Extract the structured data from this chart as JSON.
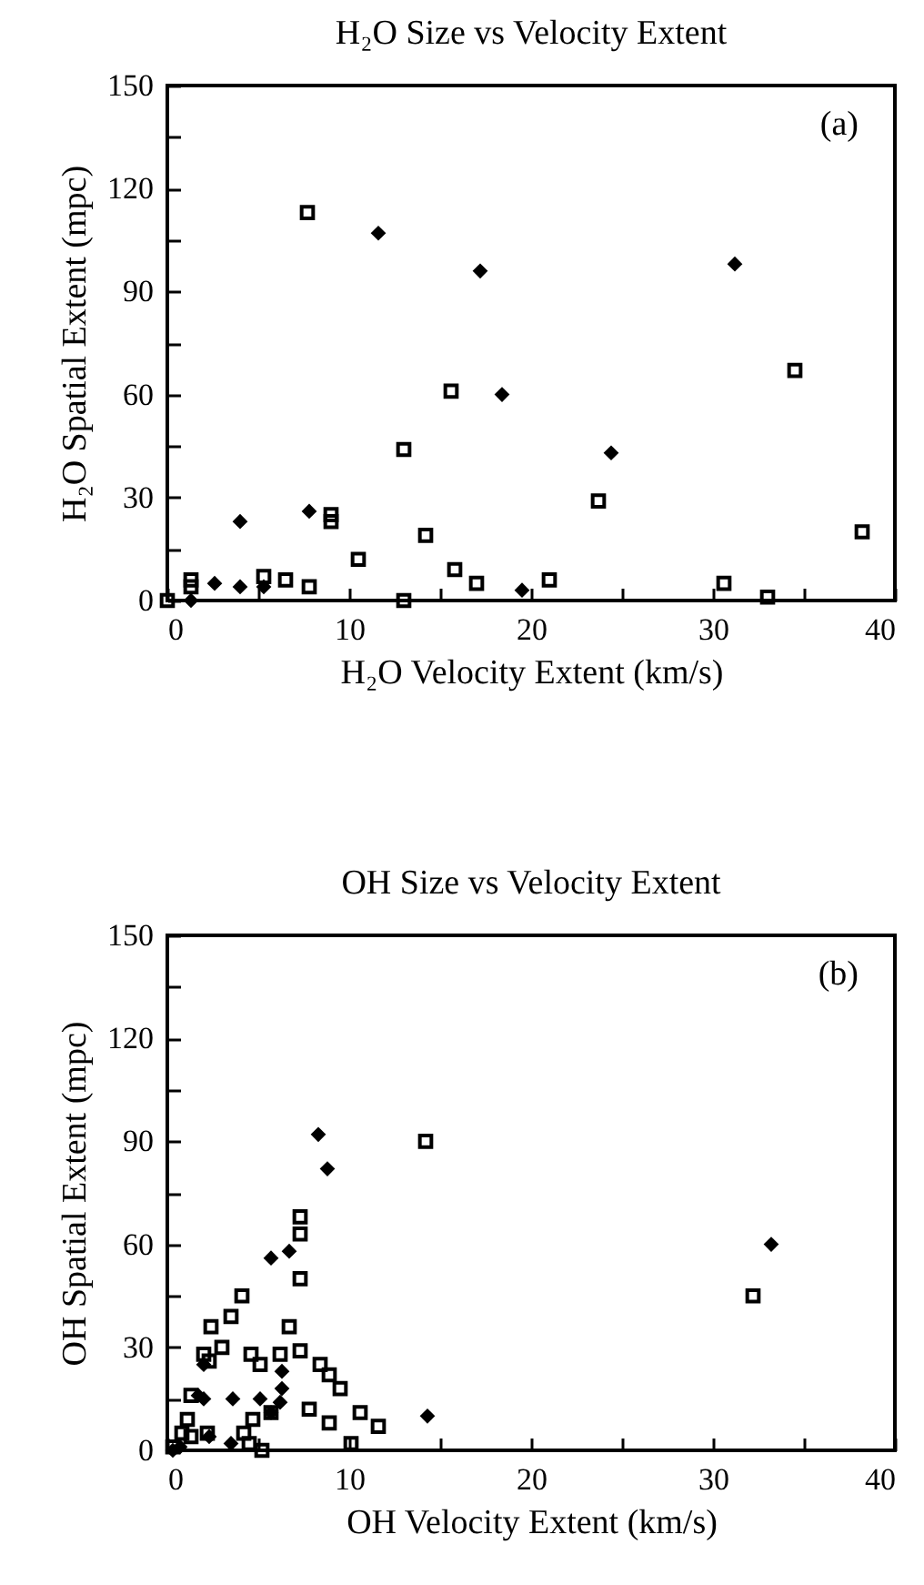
{
  "chart_data": [
    {
      "type": "scatter",
      "title": "H₂O   Size vs Velocity Extent",
      "xlabel": "H₂O  Velocity Extent (km/s)",
      "ylabel": "H₂O  Spatial Extent (mpc)",
      "annotations": [
        "(a)"
      ],
      "xlim": [
        0,
        40
      ],
      "ylim": [
        0,
        150
      ],
      "xticks": [
        0,
        {
          "value": 5,
          "label": null
        },
        10,
        {
          "value": 15,
          "label": null
        },
        20,
        {
          "value": 25,
          "label": null
        },
        30,
        {
          "value": 35,
          "label": null
        },
        40
      ],
      "yticks": [
        0,
        {
          "value": 15,
          "label": null
        },
        30,
        {
          "value": 45,
          "label": null
        },
        60,
        {
          "value": 75,
          "label": null
        },
        90,
        {
          "value": 105,
          "label": null
        },
        120,
        {
          "value": 135,
          "label": null
        },
        150
      ],
      "series": [
        {
          "color": "#000000",
          "marker": "diamond",
          "x": [
            11.6,
            17.2,
            31.2,
            18.4,
            24.4,
            4.0,
            7.8,
            19.5,
            2.6,
            4.0,
            5.3,
            1.3
          ],
          "values": [
            107,
            96,
            98,
            60,
            43,
            23,
            26,
            3,
            5,
            4,
            4,
            0
          ]
        },
        {
          "color": "#000000",
          "marker": "square",
          "x": [
            7.7,
            15.6,
            13.0,
            34.5,
            23.7,
            9.0,
            9.0,
            14.2,
            10.5,
            15.8,
            17.0,
            21.0,
            38.2,
            30.6,
            33.0,
            13.0,
            1.3,
            1.3,
            5.3,
            6.5,
            7.8,
            0
          ],
          "values": [
            113,
            61,
            44,
            67,
            29,
            25,
            23,
            19,
            12,
            9,
            5,
            6,
            20,
            5,
            1,
            0,
            6,
            4,
            7,
            6,
            4,
            0
          ]
        }
      ]
    },
    {
      "type": "scatter",
      "title": "OH Size vs Velocity Extent",
      "xlabel": "OH Velocity Extent (km/s)",
      "ylabel": "OH Spatial Extent (mpc)",
      "annotations": [
        "(b)"
      ],
      "xlim": [
        0,
        40
      ],
      "ylim": [
        0,
        150
      ],
      "xticks": [
        0,
        {
          "value": 5,
          "label": null
        },
        10,
        {
          "value": 15,
          "label": null
        },
        20,
        {
          "value": 25,
          "label": null
        },
        30,
        {
          "value": 35,
          "label": null
        },
        40
      ],
      "yticks": [
        0,
        {
          "value": 15,
          "label": null
        },
        30,
        {
          "value": 45,
          "label": null
        },
        60,
        {
          "value": 75,
          "label": null
        },
        90,
        {
          "value": 105,
          "label": null
        },
        120,
        {
          "value": 135,
          "label": null
        },
        150
      ],
      "series": [
        {
          "color": "#000000",
          "marker": "diamond",
          "x": [
            8.3,
            8.8,
            5.7,
            6.7,
            14.3,
            33.2,
            3.6,
            5.1,
            6.3,
            6.3,
            6.2,
            5.7,
            2.0,
            2.0,
            1.7,
            2.3,
            0.3,
            3.5,
            0.7
          ],
          "values": [
            92,
            82,
            56,
            58,
            10,
            60,
            15,
            15,
            23,
            18,
            14,
            11,
            25,
            15,
            16,
            4,
            0,
            2,
            1
          ]
        },
        {
          "color": "#000000",
          "marker": "square",
          "x": [
            14.2,
            7.3,
            7.3,
            7.3,
            4.1,
            3.5,
            2.4,
            6.7,
            3.0,
            2.0,
            2.3,
            4.6,
            5.1,
            6.2,
            7.3,
            8.4,
            8.9,
            9.5,
            7.8,
            8.9,
            10.6,
            11.6,
            10.1,
            5.7,
            4.7,
            4.2,
            4.5,
            5.2,
            1.3,
            1.1,
            0.8,
            1.3,
            2.2,
            0.3,
            32.2
          ],
          "values": [
            90,
            68,
            63,
            50,
            45,
            39,
            36,
            36,
            30,
            28,
            26,
            28,
            25,
            28,
            29,
            25,
            22,
            18,
            12,
            8,
            11,
            7,
            2,
            11,
            9,
            5,
            2,
            0,
            16,
            9,
            5,
            4,
            5,
            1,
            45
          ]
        }
      ]
    }
  ]
}
